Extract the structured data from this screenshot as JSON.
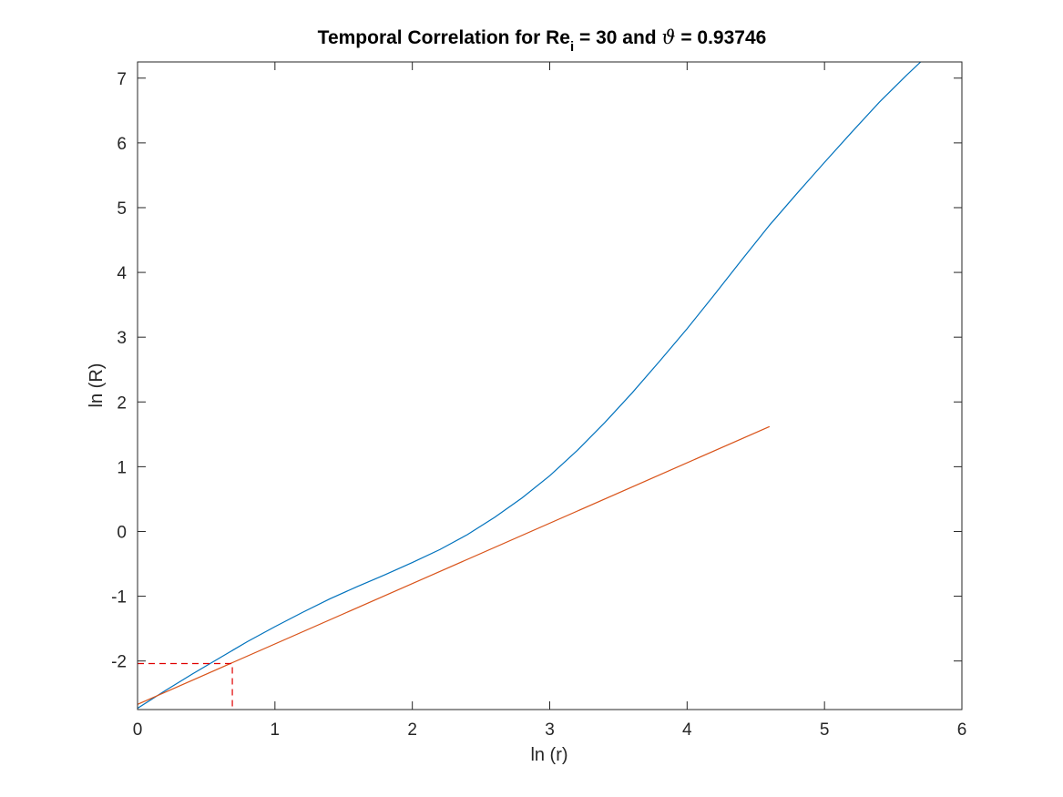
{
  "chart_data": {
    "type": "line",
    "title": {
      "prefix": "Temporal Correlation for Re",
      "subscript": "i",
      "middle": " = 30 and ",
      "symbol": "ϑ",
      "suffix": " = 0.93746"
    },
    "xlabel": "ln (r)",
    "ylabel": "ln (R)",
    "xlim": [
      0,
      6
    ],
    "ylim": [
      -2.75,
      7.25
    ],
    "xticks": [
      0,
      1,
      2,
      3,
      4,
      5,
      6
    ],
    "xtick_labels": [
      "0",
      "1",
      "2",
      "3",
      "4",
      "5",
      "6"
    ],
    "yticks": [
      -2,
      -1,
      0,
      1,
      2,
      3,
      4,
      5,
      6,
      7
    ],
    "ytick_labels": [
      "-2",
      "-1",
      "0",
      "1",
      "2",
      "3",
      "4",
      "5",
      "6",
      "7"
    ],
    "grid": false,
    "box": true,
    "series": [
      {
        "color": "#0072BD",
        "style": "solid",
        "x": [
          0,
          0.2,
          0.4,
          0.6,
          0.8,
          1.0,
          1.2,
          1.4,
          1.6,
          1.8,
          2.0,
          2.2,
          2.4,
          2.6,
          2.8,
          3.0,
          3.2,
          3.4,
          3.6,
          3.8,
          4.0,
          4.2,
          4.4,
          4.6,
          4.8,
          5.0,
          5.2,
          5.4,
          5.6,
          5.7
        ],
        "y": [
          -2.73,
          -2.46,
          -2.2,
          -1.95,
          -1.7,
          -1.47,
          -1.25,
          -1.04,
          -0.85,
          -0.67,
          -0.48,
          -0.28,
          -0.05,
          0.22,
          0.52,
          0.86,
          1.25,
          1.68,
          2.14,
          2.63,
          3.13,
          3.66,
          4.2,
          4.73,
          5.22,
          5.7,
          6.17,
          6.63,
          7.05,
          7.25
        ]
      },
      {
        "color": "#D95319",
        "style": "solid",
        "x": [
          0,
          4.6
        ],
        "y": [
          -2.67,
          1.62
        ]
      },
      {
        "color": "#E00000",
        "style": "dashed",
        "x": [
          0,
          0.69,
          0.69
        ],
        "y": [
          -2.04,
          -2.04,
          -2.75
        ]
      }
    ]
  }
}
